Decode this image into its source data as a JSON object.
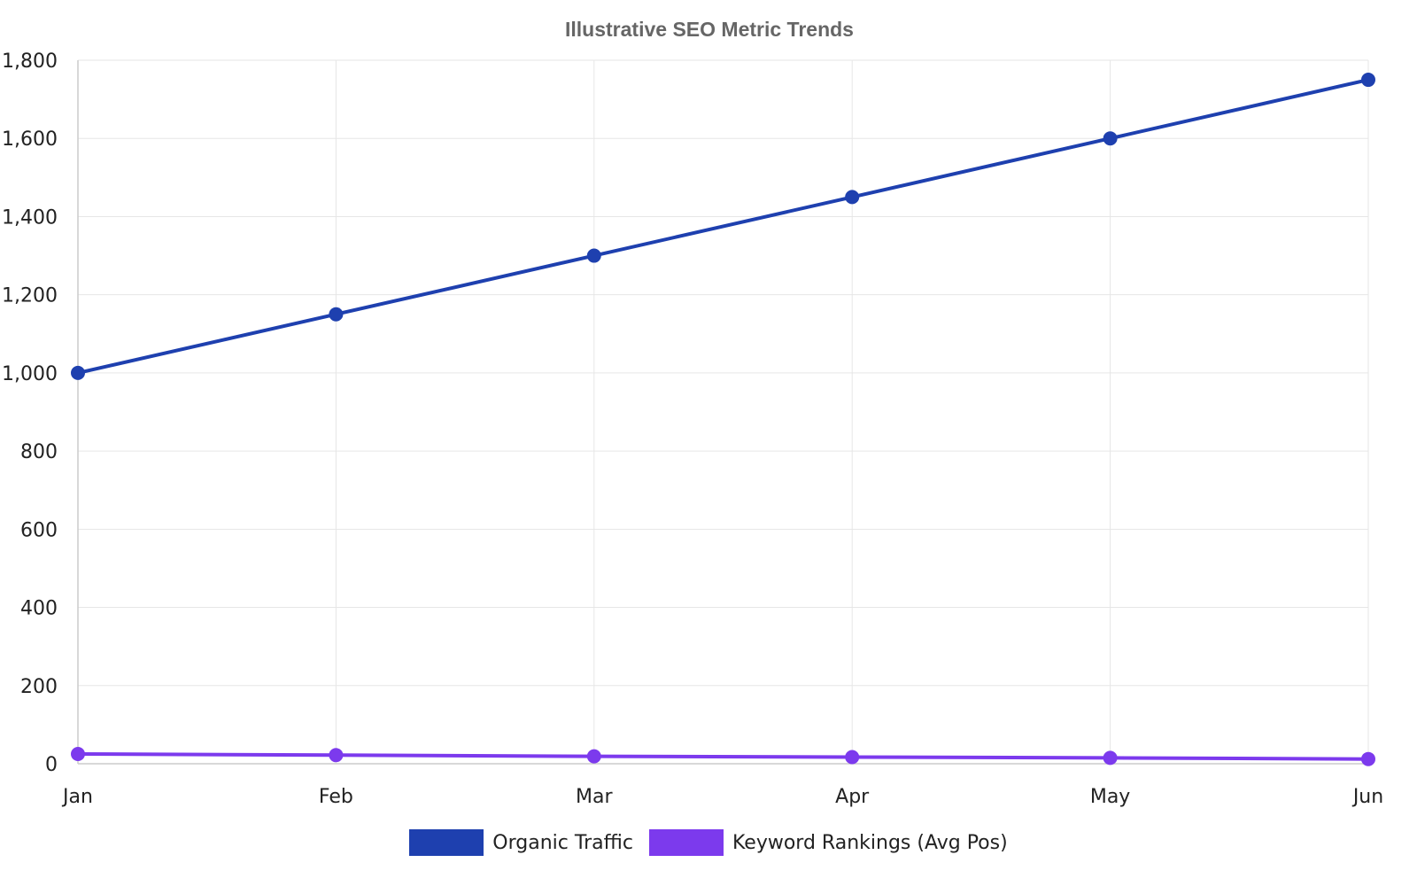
{
  "chart_data": {
    "type": "line",
    "title": "Illustrative SEO Metric Trends",
    "categories": [
      "Jan",
      "Feb",
      "Mar",
      "Apr",
      "May",
      "Jun"
    ],
    "ylim": [
      0,
      1800
    ],
    "yticks": [
      0,
      200,
      400,
      600,
      800,
      1000,
      1200,
      1400,
      1600,
      1800
    ],
    "ytick_labels": [
      "0",
      "200",
      "400",
      "600",
      "800",
      "1,000",
      "1,200",
      "1,400",
      "1,600",
      "1,800"
    ],
    "grid": true,
    "legend_position": "bottom",
    "series": [
      {
        "name": "Organic Traffic",
        "color": "#1e40af",
        "values": [
          1000,
          1150,
          1300,
          1450,
          1600,
          1750
        ]
      },
      {
        "name": "Keyword Rankings (Avg Pos)",
        "color": "#7c3aed",
        "values": [
          25,
          22,
          19,
          17,
          15,
          12
        ]
      }
    ]
  }
}
